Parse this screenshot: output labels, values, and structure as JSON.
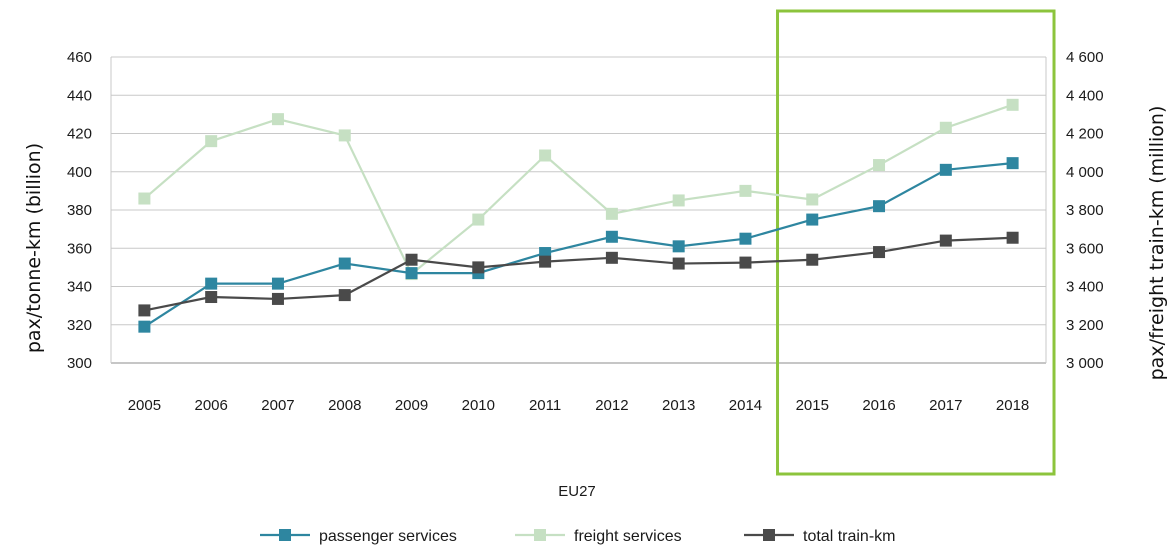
{
  "chart_data": {
    "type": "line",
    "xlabel": "EU27",
    "ylabel": "pax/tonne-km (billion)",
    "y2label": "pax/freight train-km (million)",
    "categories": [
      "2005",
      "2006",
      "2007",
      "2008",
      "2009",
      "2010",
      "2011",
      "2012",
      "2013",
      "2014",
      "2015",
      "2016",
      "2017",
      "2018"
    ],
    "ylim": [
      300,
      460
    ],
    "yticks": [
      "300",
      "320",
      "340",
      "360",
      "380",
      "400",
      "420",
      "440",
      "460"
    ],
    "y2lim": [
      3000,
      4600
    ],
    "y2ticks": [
      "3 000",
      "3 200",
      "3 400",
      "3 600",
      "3 800",
      "4 000",
      "4 200",
      "4 400",
      "4 600"
    ],
    "grid": true,
    "legend_position": "bottom",
    "highlight": {
      "from": "2015",
      "to": "2018",
      "color": "#8cc43c"
    },
    "series": [
      {
        "name": "passenger services",
        "axis": "left",
        "color": "#2e86a0",
        "values": [
          319,
          341.5,
          341.5,
          352,
          347,
          347,
          357.5,
          366,
          361,
          365,
          375,
          382,
          401,
          404.5
        ]
      },
      {
        "name": "freight services",
        "axis": "left",
        "color": "#c6e0c3",
        "values": [
          386,
          416,
          427.5,
          419,
          346.5,
          375,
          408.5,
          378,
          385,
          390,
          385.5,
          403.5,
          423,
          435
        ]
      },
      {
        "name": "total train-km",
        "axis": "right",
        "color": "#4a4a4a",
        "values": [
          3275,
          3345,
          3335,
          3355,
          3540,
          3500,
          3530,
          3550,
          3520,
          3525,
          3540,
          3580,
          3640,
          3655
        ]
      }
    ]
  }
}
